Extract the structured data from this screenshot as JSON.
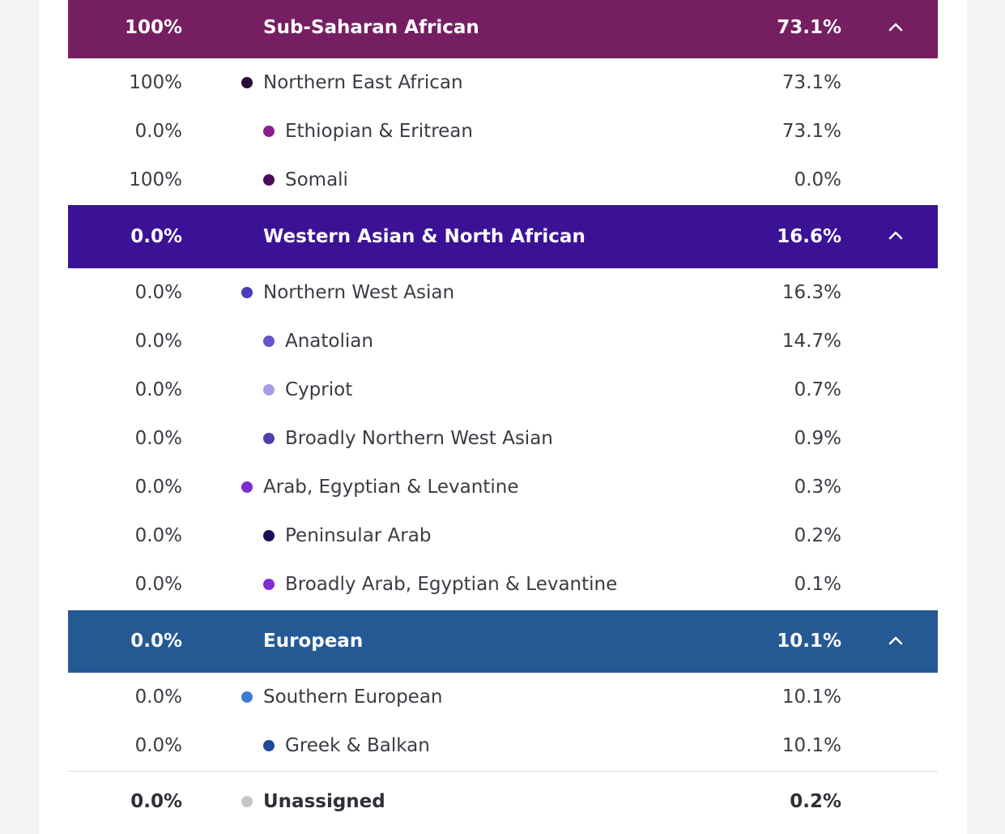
{
  "sections": [
    {
      "left_value": "100%",
      "name": "Sub-Saharan African",
      "value": "73.1%",
      "color": "#761e62",
      "rows": [
        {
          "left_value": "100%",
          "name": "Northern East African",
          "value": "73.1%",
          "dot_color": "#2d0a3a",
          "level": 1
        },
        {
          "left_value": "0.0%",
          "name": "Ethiopian & Eritrean",
          "value": "73.1%",
          "dot_color": "#8a1f8c",
          "level": 2
        },
        {
          "left_value": "100%",
          "name": "Somali",
          "value": "0.0%",
          "dot_color": "#4d0b5b",
          "level": 2
        }
      ]
    },
    {
      "left_value": "0.0%",
      "name": "Western Asian & North African",
      "value": "16.6%",
      "color": "#3b1295",
      "rows": [
        {
          "left_value": "0.0%",
          "name": "Northern West Asian",
          "value": "16.3%",
          "dot_color": "#4b3bb8",
          "level": 1
        },
        {
          "left_value": "0.0%",
          "name": "Anatolian",
          "value": "14.7%",
          "dot_color": "#6a52cc",
          "level": 2
        },
        {
          "left_value": "0.0%",
          "name": "Cypriot",
          "value": "0.7%",
          "dot_color": "#a99be8",
          "level": 2
        },
        {
          "left_value": "0.0%",
          "name": "Broadly Northern West Asian",
          "value": "0.9%",
          "dot_color": "#4e40b0",
          "level": 2
        },
        {
          "left_value": "0.0%",
          "name": "Arab, Egyptian & Levantine",
          "value": "0.3%",
          "dot_color": "#7b2ecf",
          "level": 1
        },
        {
          "left_value": "0.0%",
          "name": "Peninsular Arab",
          "value": "0.2%",
          "dot_color": "#1e0f54",
          "level": 2
        },
        {
          "left_value": "0.0%",
          "name": "Broadly Arab, Egyptian & Levantine",
          "value": "0.1%",
          "dot_color": "#7d2fd4",
          "level": 2
        }
      ]
    },
    {
      "left_value": "0.0%",
      "name": "European",
      "value": "10.1%",
      "color": "#245994",
      "rows": [
        {
          "left_value": "0.0%",
          "name": "Southern European",
          "value": "10.1%",
          "dot_color": "#3a7cd6",
          "level": 1
        },
        {
          "left_value": "0.0%",
          "name": "Greek & Balkan",
          "value": "10.1%",
          "dot_color": "#1f4a9c",
          "level": 2
        }
      ]
    }
  ],
  "unassigned": {
    "left_value": "0.0%",
    "name": "Unassigned",
    "value": "0.2%",
    "dot_color": "#c6c6c8"
  },
  "icons": {
    "chevron": "chevron-up-icon"
  }
}
